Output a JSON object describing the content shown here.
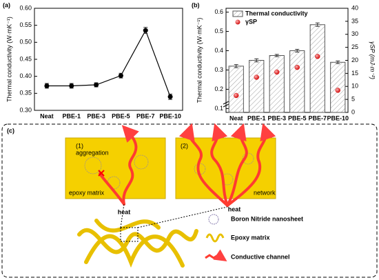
{
  "chart_data": [
    {
      "type": "line",
      "panel": "(a)",
      "ylabel": "Thermal conductivity (W·mK⁻¹)",
      "categories": [
        "Neat",
        "PBE-1",
        "PBE-3",
        "PBE-5",
        "PBE-7",
        "PBE-10"
      ],
      "series": [
        {
          "color": "#000000",
          "values": [
            0.372,
            0.372,
            0.375,
            0.402,
            0.535,
            0.34
          ],
          "errors": [
            0.007,
            0.007,
            0.006,
            0.007,
            0.009,
            0.008
          ]
        }
      ],
      "ylim": [
        0.3,
        0.6
      ],
      "yticks": [
        {
          "value": 0.3,
          "label": "0.30"
        },
        0.35,
        {
          "value": 0.4,
          "label": "0.40"
        },
        0.45,
        {
          "value": 0.5,
          "label": "0.50"
        },
        0.55,
        {
          "value": 0.6,
          "label": "0.60"
        }
      ]
    },
    {
      "type": "bar",
      "panel": "(b)",
      "ylabel": "Thermal conductivity (W·mK⁻¹)",
      "y2label": "γSP (mJ·m⁻²)",
      "categories": [
        "Neat",
        "PBE-1",
        "PBE-3",
        "PBE-5",
        "PBE-7",
        "PBE-10"
      ],
      "series": [
        {
          "name": "Thermal conductivity",
          "kind": "bar",
          "color": "#555555",
          "values": [
            0.32,
            0.35,
            0.375,
            0.4,
            0.535,
            0.34
          ],
          "errors": [
            0.008,
            0.008,
            0.006,
            0.007,
            0.009,
            0.007
          ]
        },
        {
          "name": "γSP",
          "kind": "scatter",
          "axis": "y2",
          "color": "#e02020",
          "values": [
            6.5,
            13.5,
            15.5,
            17.3,
            21.5,
            8.5
          ]
        }
      ],
      "ylim": [
        0.08,
        0.62
      ],
      "yticks": [
        0.1,
        0.2,
        0.3,
        0.4,
        0.5,
        0.6
      ],
      "y2lim": [
        0,
        40
      ],
      "y2ticks": [
        0,
        5,
        10,
        15,
        20,
        25,
        30,
        35,
        40
      ]
    }
  ],
  "diagram": {
    "panel": "(c)",
    "box1": {
      "number": "(1)",
      "labels": [
        "aggregation",
        "epoxy matrix"
      ],
      "source": "heat"
    },
    "box2": {
      "number": "(2)",
      "labels": [
        "network"
      ],
      "source": "heat"
    },
    "legend": [
      "Boron Nitride nanosheet",
      "Epoxy matrix",
      "Conductive channel"
    ]
  }
}
